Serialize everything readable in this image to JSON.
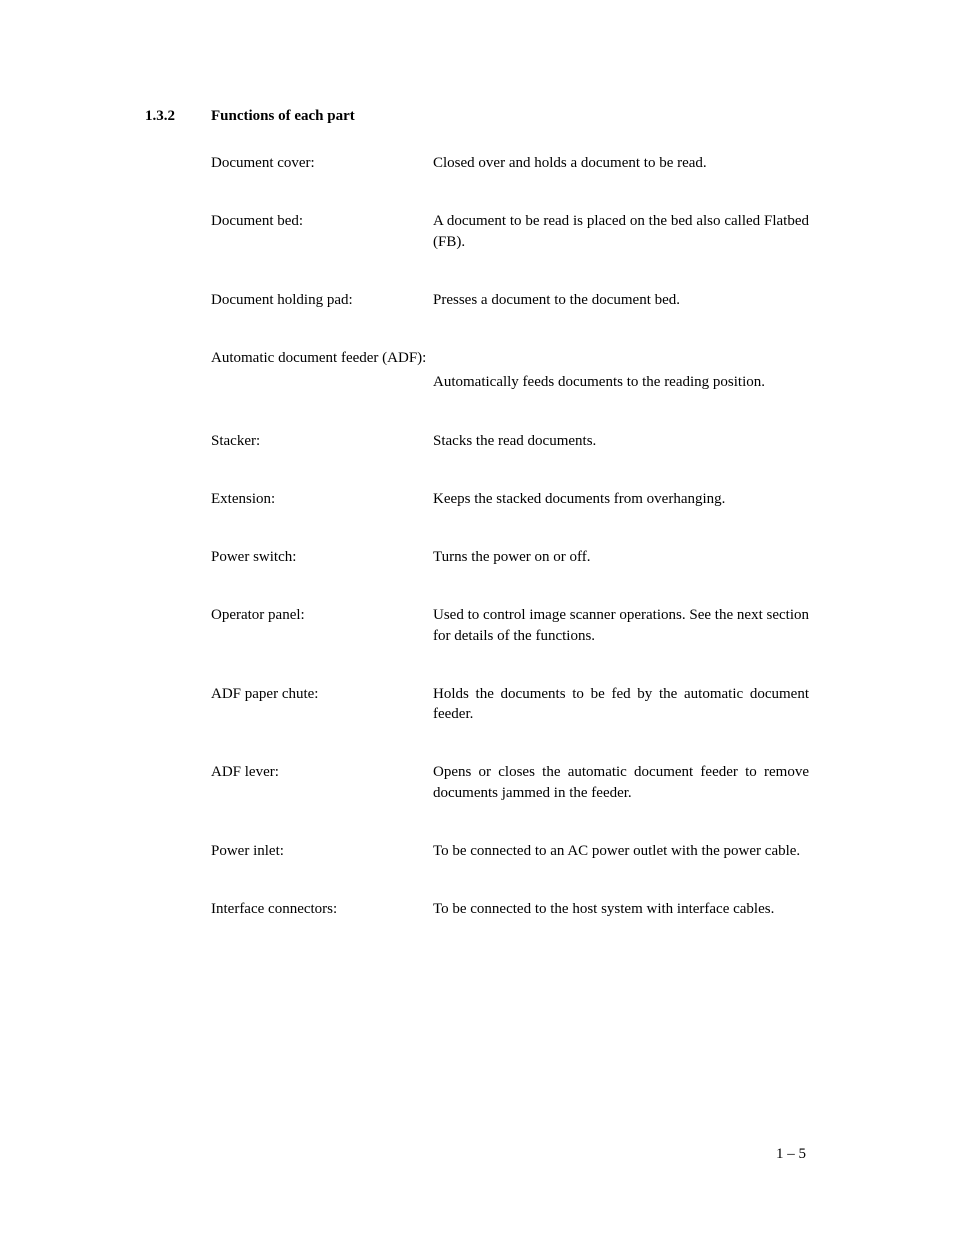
{
  "section": {
    "number": "1.3.2",
    "title": "Functions of each part"
  },
  "definitions": [
    {
      "term": "Document cover:",
      "description": "Closed over and holds a document to be read.",
      "overflow": false
    },
    {
      "term": "Document bed:",
      "description": "A document to be read is placed on the bed also called Flatbed (FB).",
      "overflow": false
    },
    {
      "term": "Document holding pad:",
      "description": "Presses a document to the document bed.",
      "overflow": false
    },
    {
      "term": "Automatic document feeder (ADF):",
      "description": "Automatically feeds documents to the reading position.",
      "overflow": true
    },
    {
      "term": "Stacker:",
      "description": "Stacks the read documents.",
      "overflow": false
    },
    {
      "term": "Extension:",
      "description": "Keeps the stacked documents from overhanging.",
      "overflow": false
    },
    {
      "term": "Power switch:",
      "description": "Turns the power on or off.",
      "overflow": false
    },
    {
      "term": "Operator panel:",
      "description": "Used to control image scanner operations.  See the next section for details of the functions.",
      "overflow": false
    },
    {
      "term": "ADF paper chute:",
      "description": "Holds the documents to be fed by the automatic document feeder.",
      "overflow": false
    },
    {
      "term": "ADF lever:",
      "description": "Opens or closes the automatic document feeder to remove documents jammed in the feeder.",
      "overflow": false
    },
    {
      "term": "Power inlet:",
      "description": "To be connected to an AC power outlet with the power cable.",
      "overflow": false
    },
    {
      "term": "Interface connectors:",
      "description": "To be connected to the host system with interface cables.",
      "overflow": false
    }
  ],
  "page_number": "1 – 5",
  "styling": {
    "font_family": "Century Schoolbook",
    "text_color": "#000000",
    "background_color": "#ffffff",
    "heading_fontsize": 15,
    "body_fontsize": 15,
    "term_column_width": 222,
    "left_indent": 66,
    "row_spacing": 38,
    "line_height": 1.35
  }
}
